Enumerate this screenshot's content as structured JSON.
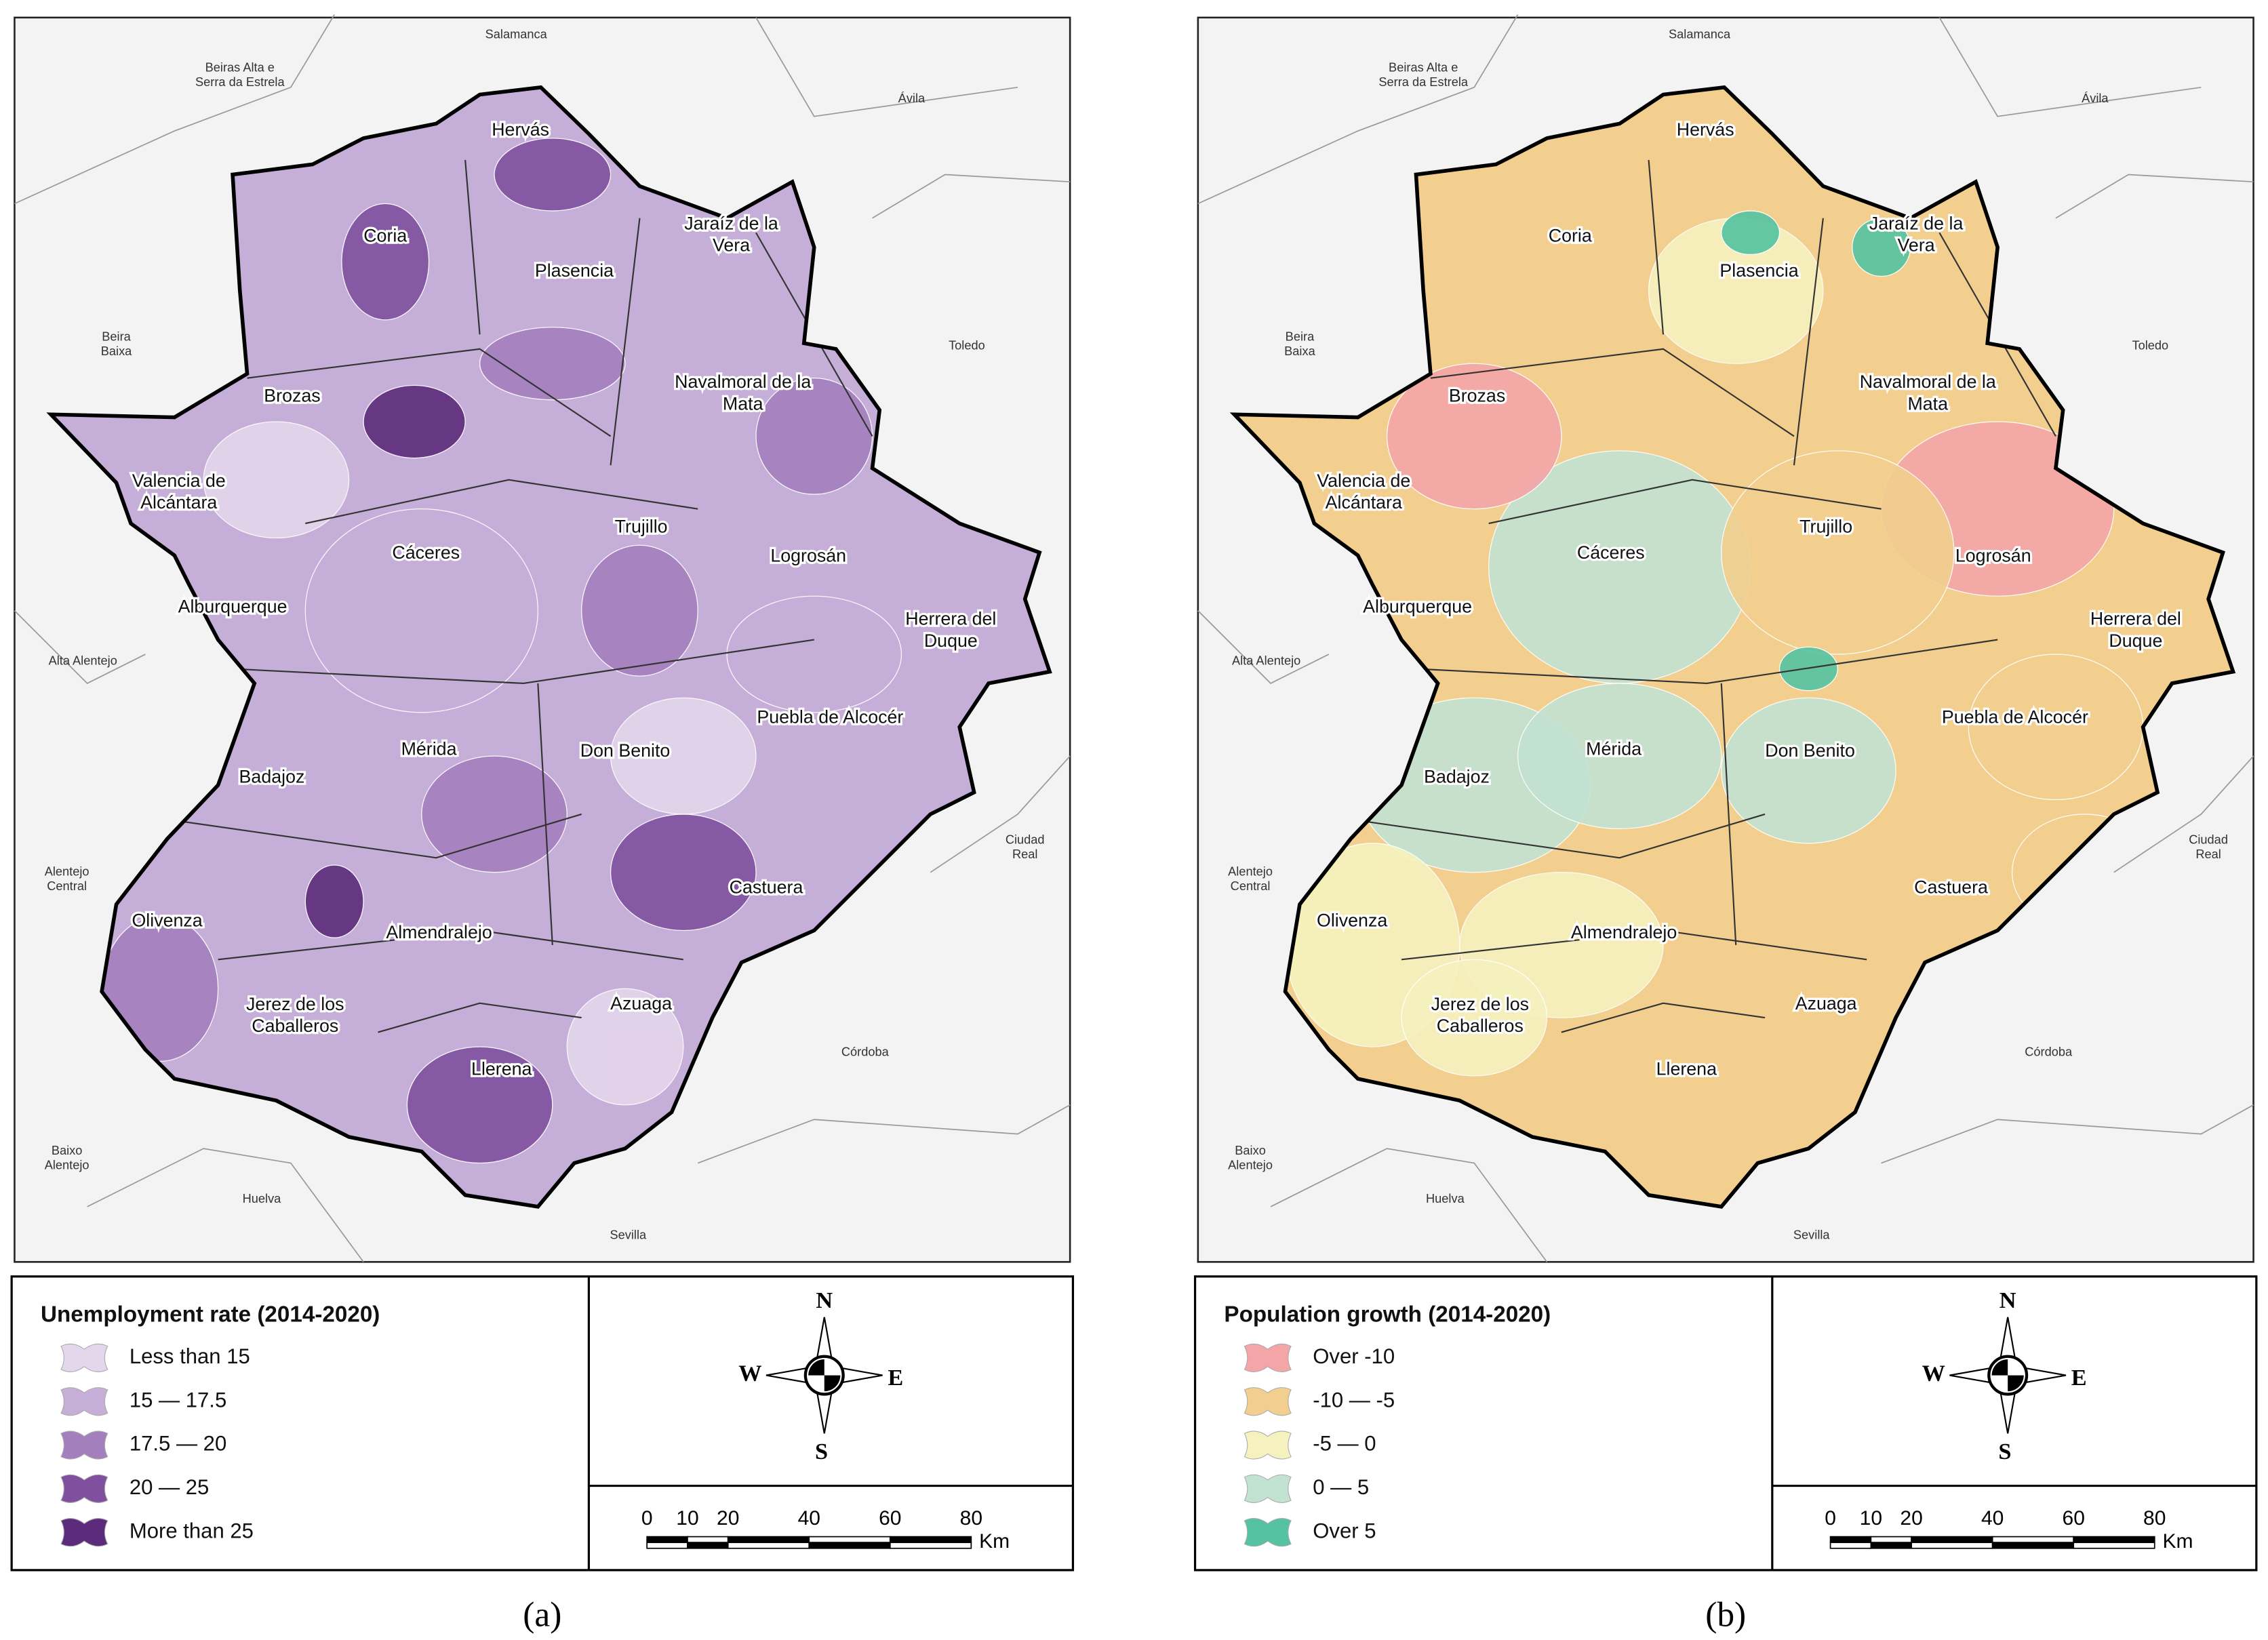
{
  "panels": [
    {
      "caption": "(a)",
      "legend": {
        "title": "Unemployment rate (2014-2020)",
        "items": [
          {
            "label": "Less than 15",
            "color": "#e4d6eb"
          },
          {
            "label": "15 — 17.5",
            "color": "#c5aed7"
          },
          {
            "label": "17.5 — 20",
            "color": "#a47fbe"
          },
          {
            "label": "20 — 25",
            "color": "#80509f"
          },
          {
            "label": "More than 25",
            "color": "#5c2b7b"
          }
        ]
      }
    },
    {
      "caption": "(b)",
      "legend": {
        "title": "Population growth (2014-2020)",
        "items": [
          {
            "label": "Over -10",
            "color": "#f4a5a8"
          },
          {
            "label": "-10 — -5",
            "color": "#f2cf8e"
          },
          {
            "label": "-5 — 0",
            "color": "#f6f2bf"
          },
          {
            "label": "0 — 5",
            "color": "#c2e2d2"
          },
          {
            "label": "Over 5",
            "color": "#55c3a2"
          }
        ]
      }
    }
  ],
  "towns": [
    [
      "Hervás"
    ],
    [
      "Coria"
    ],
    [
      "Plasencia"
    ],
    [
      "Jaraíz de la",
      "Vera"
    ],
    [
      "Brozas"
    ],
    [
      "Navalmoral de la",
      "Mata"
    ],
    [
      "Valencia de",
      "Alcántara"
    ],
    [
      "Cáceres"
    ],
    [
      "Trujillo"
    ],
    [
      "Logrosán"
    ],
    [
      "Alburquerque"
    ],
    [
      "Herrera del",
      "Duque"
    ],
    [
      "Mérida"
    ],
    [
      "Don Benito"
    ],
    [
      "Puebla de Alcocér"
    ],
    [
      "Badajoz"
    ],
    [
      "Castuera"
    ],
    [
      "Olivenza"
    ],
    [
      "Almendralejo"
    ],
    [
      "Azuaga"
    ],
    [
      "Jerez de los",
      "Caballeros"
    ],
    [
      "Llerena"
    ]
  ],
  "neighbors": [
    [
      "Salamanca"
    ],
    [
      "Beiras Alta e",
      "Serra da Estrela"
    ],
    [
      "Ávila"
    ],
    [
      "Toledo"
    ],
    [
      "Beira",
      "Baixa"
    ],
    [
      "Alta Alentejo"
    ],
    [
      "Alentejo",
      "Central"
    ],
    [
      "Ciudad",
      "Real"
    ],
    [
      "Córdoba"
    ],
    [
      "Baixo",
      "Alentejo"
    ],
    [
      "Huelva"
    ],
    [
      "Sevilla"
    ]
  ],
  "compass": {
    "north": "N",
    "east": "E",
    "south": "S",
    "west": "W"
  },
  "scale": {
    "ticks": [
      0,
      10,
      20,
      40,
      60,
      80
    ],
    "unit": "Km"
  }
}
